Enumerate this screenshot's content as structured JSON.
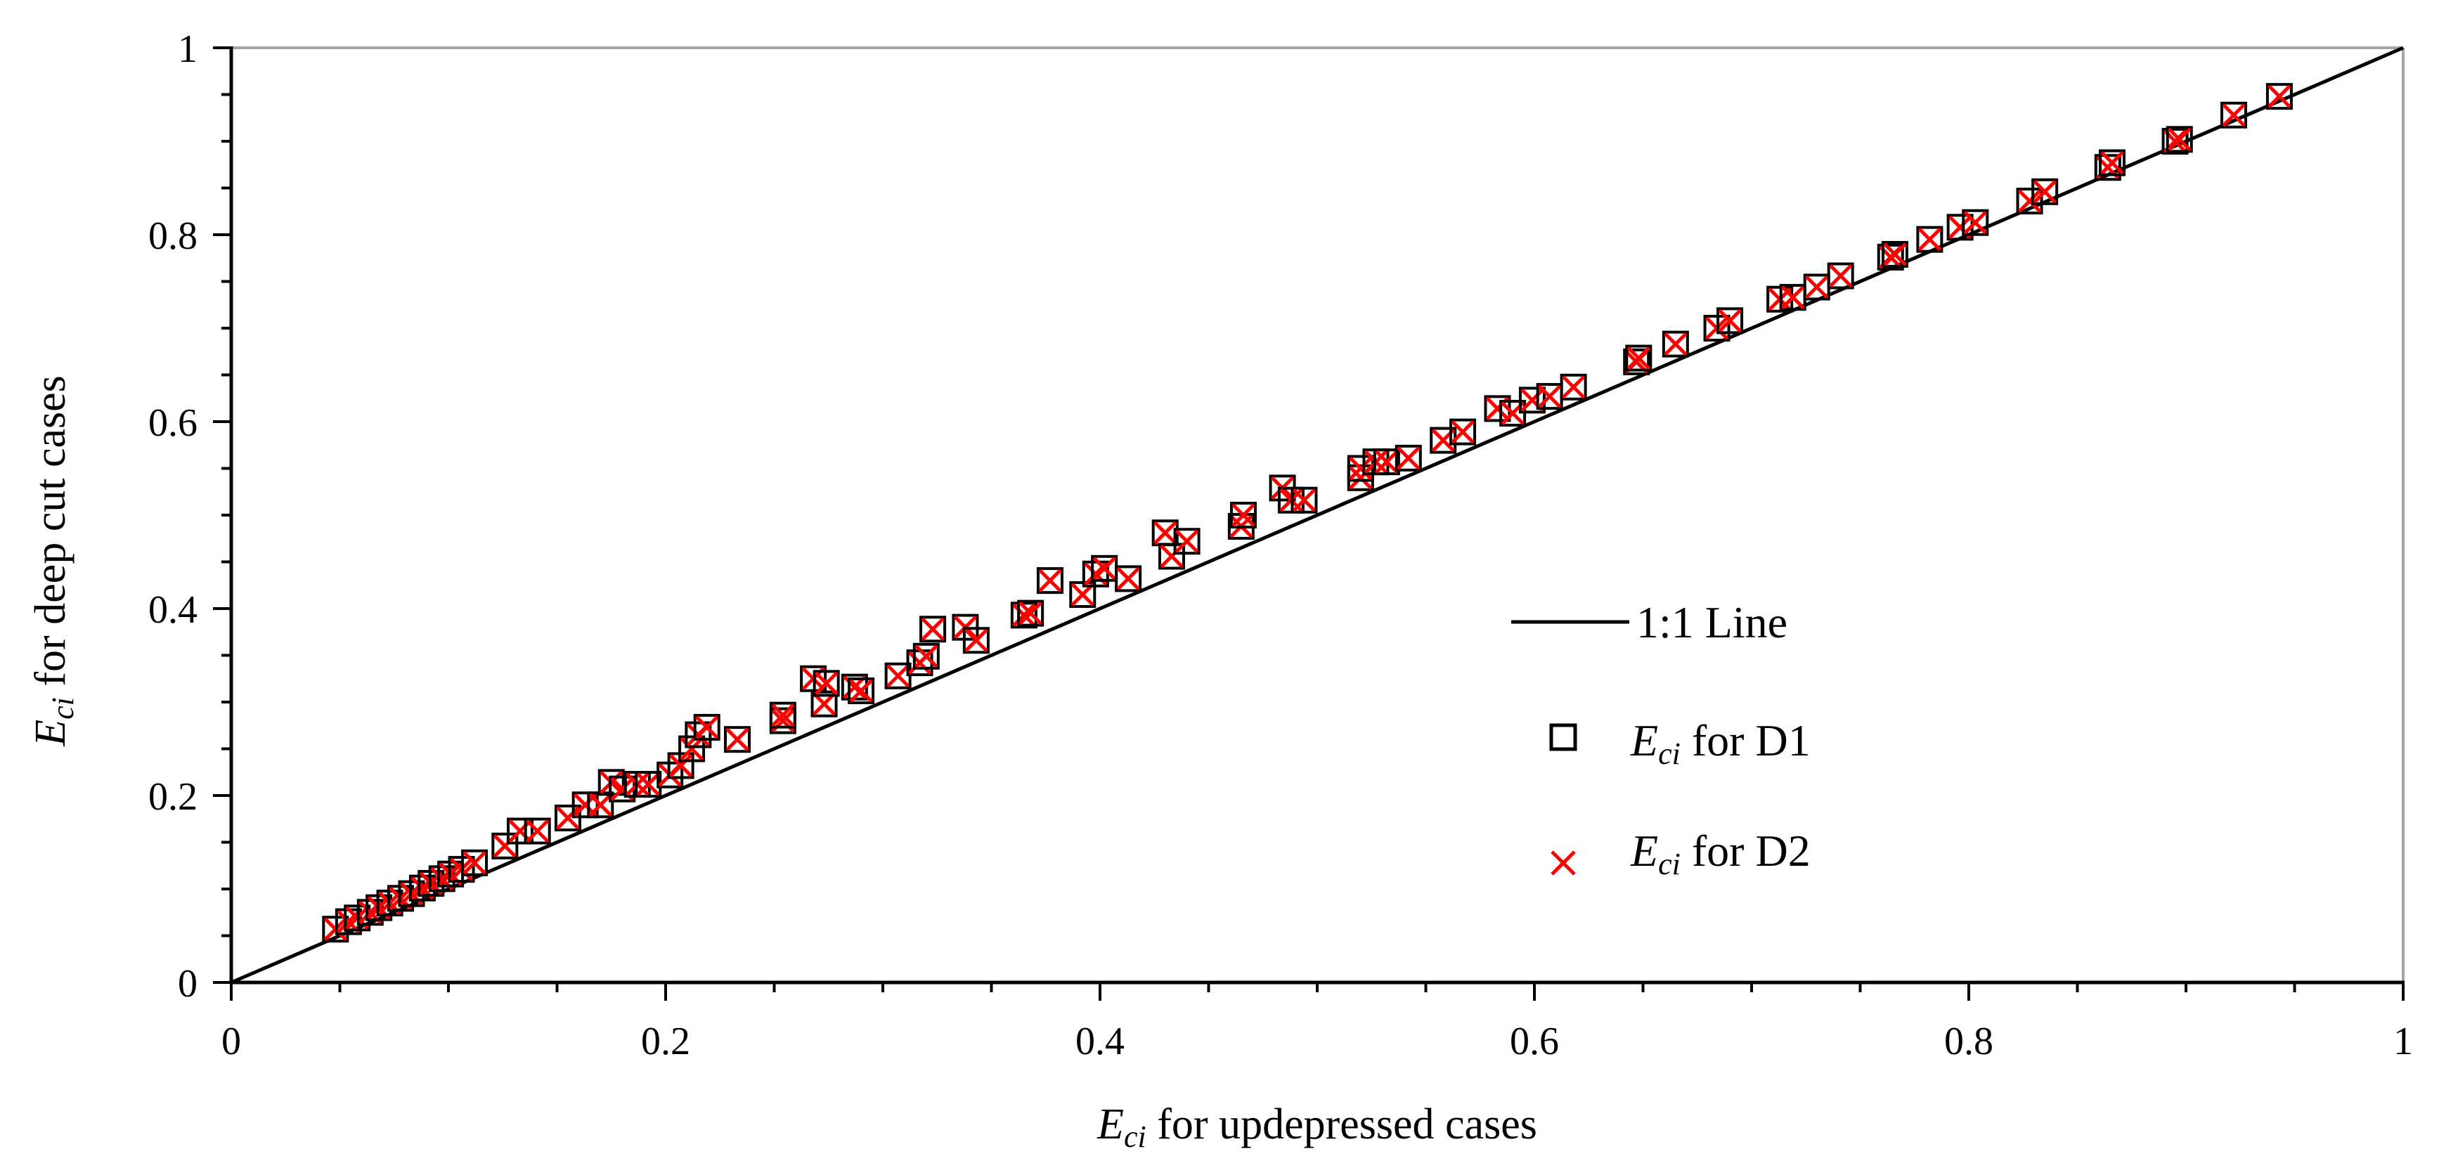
{
  "chart_data": {
    "type": "scatter",
    "title": "",
    "xlabel": {
      "symbol": "E",
      "subscript": "ci",
      "text": " for updepressed cases"
    },
    "ylabel": {
      "symbol": "E",
      "subscript": "ci",
      "text": " for deep cut cases"
    },
    "xlim": [
      0,
      1
    ],
    "ylim": [
      0,
      1
    ],
    "x_major_ticks": [
      0,
      0.2,
      0.4,
      0.6,
      0.8,
      1
    ],
    "x_tick_labels": [
      "0",
      "0.2",
      "0.4",
      "0.6",
      "0.8",
      "1"
    ],
    "y_major_ticks": [
      0,
      0.2,
      0.4,
      0.6,
      0.8,
      1
    ],
    "y_tick_labels": [
      "0",
      "0.2",
      "0.4",
      "0.6",
      "0.8",
      "1"
    ],
    "minor_tick_step": 0.05,
    "grid": false,
    "legend_position": "center-right",
    "legend": {
      "line": "1:1 Line",
      "d1": {
        "symbol": "E",
        "subscript": "ci",
        "text": " for D1"
      },
      "d2": {
        "symbol": "E",
        "subscript": "ci",
        "text": " for D2"
      }
    },
    "reference_line": {
      "name": "1:1 Line",
      "x": [
        0,
        1
      ],
      "y": [
        0,
        1
      ],
      "color": "#000000"
    },
    "colors": {
      "d1": "#000000",
      "d2": "#ff0000"
    },
    "points": [
      [
        0.048,
        0.057
      ],
      [
        0.054,
        0.065
      ],
      [
        0.058,
        0.069
      ],
      [
        0.064,
        0.075
      ],
      [
        0.068,
        0.08
      ],
      [
        0.073,
        0.085
      ],
      [
        0.078,
        0.09
      ],
      [
        0.083,
        0.095
      ],
      [
        0.088,
        0.101
      ],
      [
        0.092,
        0.106
      ],
      [
        0.097,
        0.111
      ],
      [
        0.101,
        0.116
      ],
      [
        0.106,
        0.121
      ],
      [
        0.112,
        0.128
      ],
      [
        0.126,
        0.146
      ],
      [
        0.133,
        0.162
      ],
      [
        0.141,
        0.162
      ],
      [
        0.155,
        0.176
      ],
      [
        0.163,
        0.19
      ],
      [
        0.17,
        0.19
      ],
      [
        0.175,
        0.214
      ],
      [
        0.18,
        0.207
      ],
      [
        0.187,
        0.212
      ],
      [
        0.192,
        0.212
      ],
      [
        0.202,
        0.222
      ],
      [
        0.207,
        0.232
      ],
      [
        0.212,
        0.25
      ],
      [
        0.215,
        0.265
      ],
      [
        0.219,
        0.273
      ],
      [
        0.233,
        0.26
      ],
      [
        0.254,
        0.28
      ],
      [
        0.254,
        0.286
      ],
      [
        0.268,
        0.325
      ],
      [
        0.273,
        0.298
      ],
      [
        0.274,
        0.32
      ],
      [
        0.287,
        0.316
      ],
      [
        0.29,
        0.312
      ],
      [
        0.307,
        0.328
      ],
      [
        0.317,
        0.342
      ],
      [
        0.32,
        0.349
      ],
      [
        0.323,
        0.378
      ],
      [
        0.338,
        0.38
      ],
      [
        0.343,
        0.366
      ],
      [
        0.365,
        0.393
      ],
      [
        0.368,
        0.395
      ],
      [
        0.377,
        0.43
      ],
      [
        0.392,
        0.415
      ],
      [
        0.398,
        0.437
      ],
      [
        0.402,
        0.443
      ],
      [
        0.413,
        0.432
      ],
      [
        0.43,
        0.481
      ],
      [
        0.433,
        0.456
      ],
      [
        0.44,
        0.472
      ],
      [
        0.465,
        0.488
      ],
      [
        0.466,
        0.5
      ],
      [
        0.484,
        0.529
      ],
      [
        0.488,
        0.516
      ],
      [
        0.494,
        0.516
      ],
      [
        0.52,
        0.54
      ],
      [
        0.52,
        0.55
      ],
      [
        0.527,
        0.557
      ],
      [
        0.532,
        0.557
      ],
      [
        0.542,
        0.561
      ],
      [
        0.558,
        0.58
      ],
      [
        0.567,
        0.589
      ],
      [
        0.583,
        0.614
      ],
      [
        0.59,
        0.609
      ],
      [
        0.599,
        0.623
      ],
      [
        0.607,
        0.627
      ],
      [
        0.618,
        0.637
      ],
      [
        0.647,
        0.664
      ],
      [
        0.648,
        0.668
      ],
      [
        0.665,
        0.683
      ],
      [
        0.684,
        0.7
      ],
      [
        0.69,
        0.708
      ],
      [
        0.713,
        0.731
      ],
      [
        0.719,
        0.733
      ],
      [
        0.73,
        0.744
      ],
      [
        0.741,
        0.756
      ],
      [
        0.764,
        0.776
      ],
      [
        0.766,
        0.779
      ],
      [
        0.782,
        0.795
      ],
      [
        0.796,
        0.808
      ],
      [
        0.803,
        0.813
      ],
      [
        0.828,
        0.836
      ],
      [
        0.835,
        0.846
      ],
      [
        0.864,
        0.872
      ],
      [
        0.866,
        0.877
      ],
      [
        0.895,
        0.9
      ],
      [
        0.897,
        0.902
      ],
      [
        0.922,
        0.928
      ],
      [
        0.943,
        0.948
      ]
    ]
  }
}
